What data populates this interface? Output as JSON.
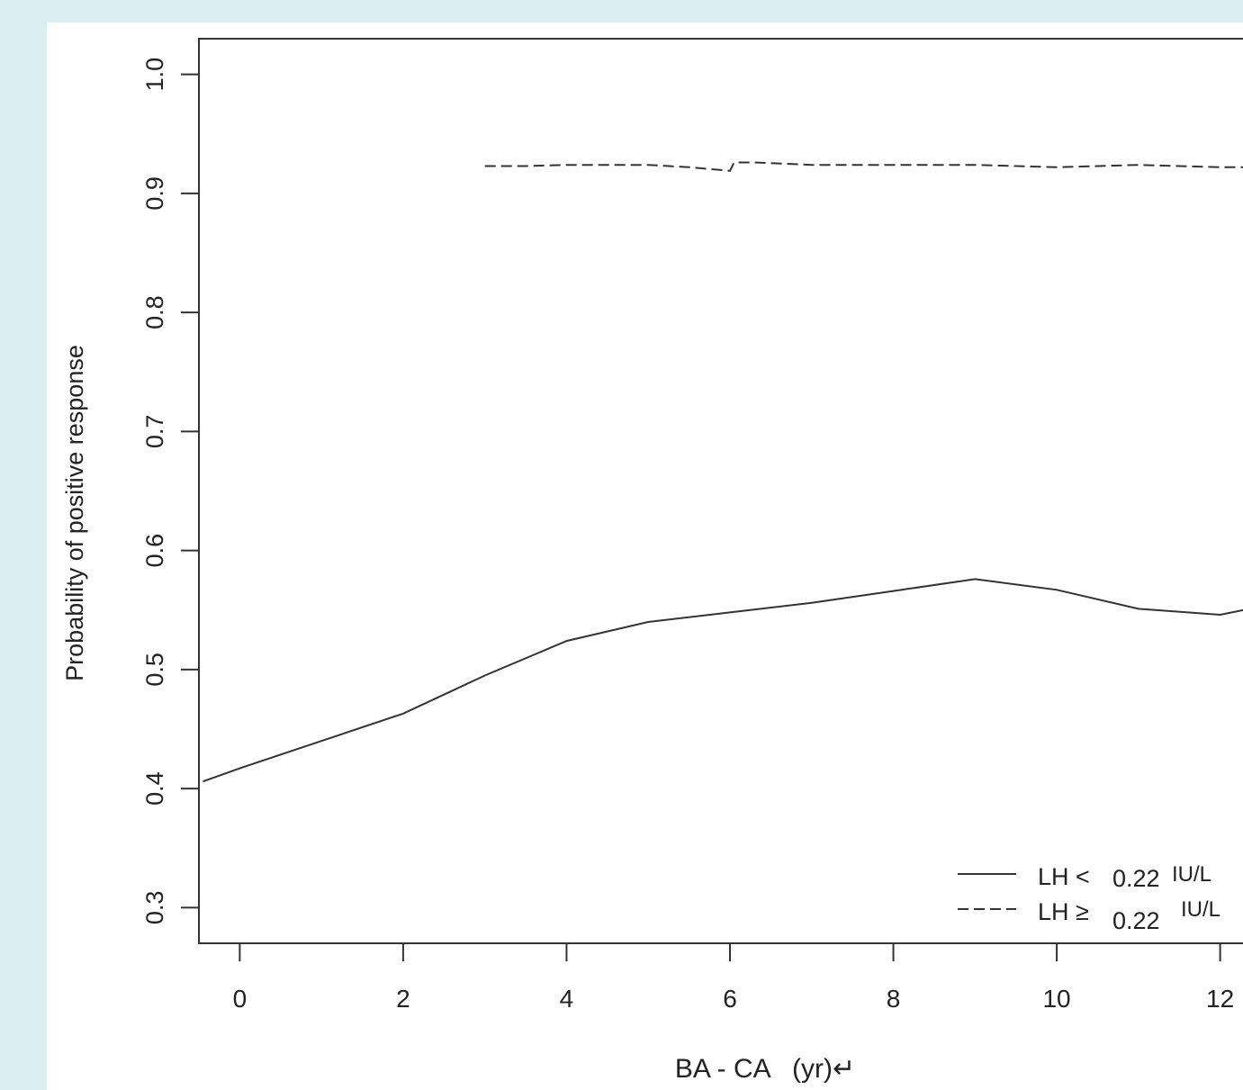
{
  "banner": {
    "text": ""
  },
  "chart_data": {
    "type": "line",
    "title": "",
    "xlabel": "BA - CA   (yr)↵",
    "ylabel": "Probability of positive response",
    "xlim": [
      -0.5,
      12.5
    ],
    "ylim": [
      0.27,
      1.03
    ],
    "x_ticks": [
      0,
      2,
      4,
      6,
      8,
      10,
      12
    ],
    "x_tick_labels": [
      "0",
      "2",
      "4",
      "6",
      "8",
      "10",
      "12"
    ],
    "y_ticks": [
      0.3,
      0.4,
      0.5,
      0.6,
      0.7,
      0.8,
      0.9,
      1.0
    ],
    "y_tick_labels": [
      "0.3",
      "0.4",
      "0.5",
      "0.6",
      "0.7",
      "0.8",
      "0.9",
      "1.0"
    ],
    "grid": false,
    "legend_position": "bottom-right",
    "series": [
      {
        "name": "LH < 0.22 IU/L",
        "legend_prefix": "LH <",
        "legend_value": "0.22",
        "legend_unit": "IU/L",
        "style": "solid",
        "color": "#333333",
        "x": [
          -0.45,
          0,
          1,
          2,
          3,
          4,
          5,
          6,
          7,
          8,
          9,
          10,
          11,
          12,
          12.5
        ],
        "y": [
          0.406,
          0.417,
          0.44,
          0.463,
          0.495,
          0.524,
          0.54,
          0.548,
          0.556,
          0.566,
          0.576,
          0.567,
          0.551,
          0.546,
          0.553
        ]
      },
      {
        "name": "LH ≥ 0.22 IU/L",
        "legend_prefix": "LH ≥",
        "legend_value": "0.22",
        "legend_unit": "IU/L",
        "style": "dashed",
        "color": "#333333",
        "x": [
          3,
          3.5,
          4,
          4.5,
          5,
          5.5,
          6,
          6.05,
          6.3,
          7,
          8,
          9,
          10,
          11,
          12,
          12.5
        ],
        "y": [
          0.923,
          0.923,
          0.924,
          0.924,
          0.924,
          0.922,
          0.919,
          0.926,
          0.926,
          0.924,
          0.924,
          0.924,
          0.922,
          0.924,
          0.922,
          0.922
        ]
      }
    ]
  }
}
